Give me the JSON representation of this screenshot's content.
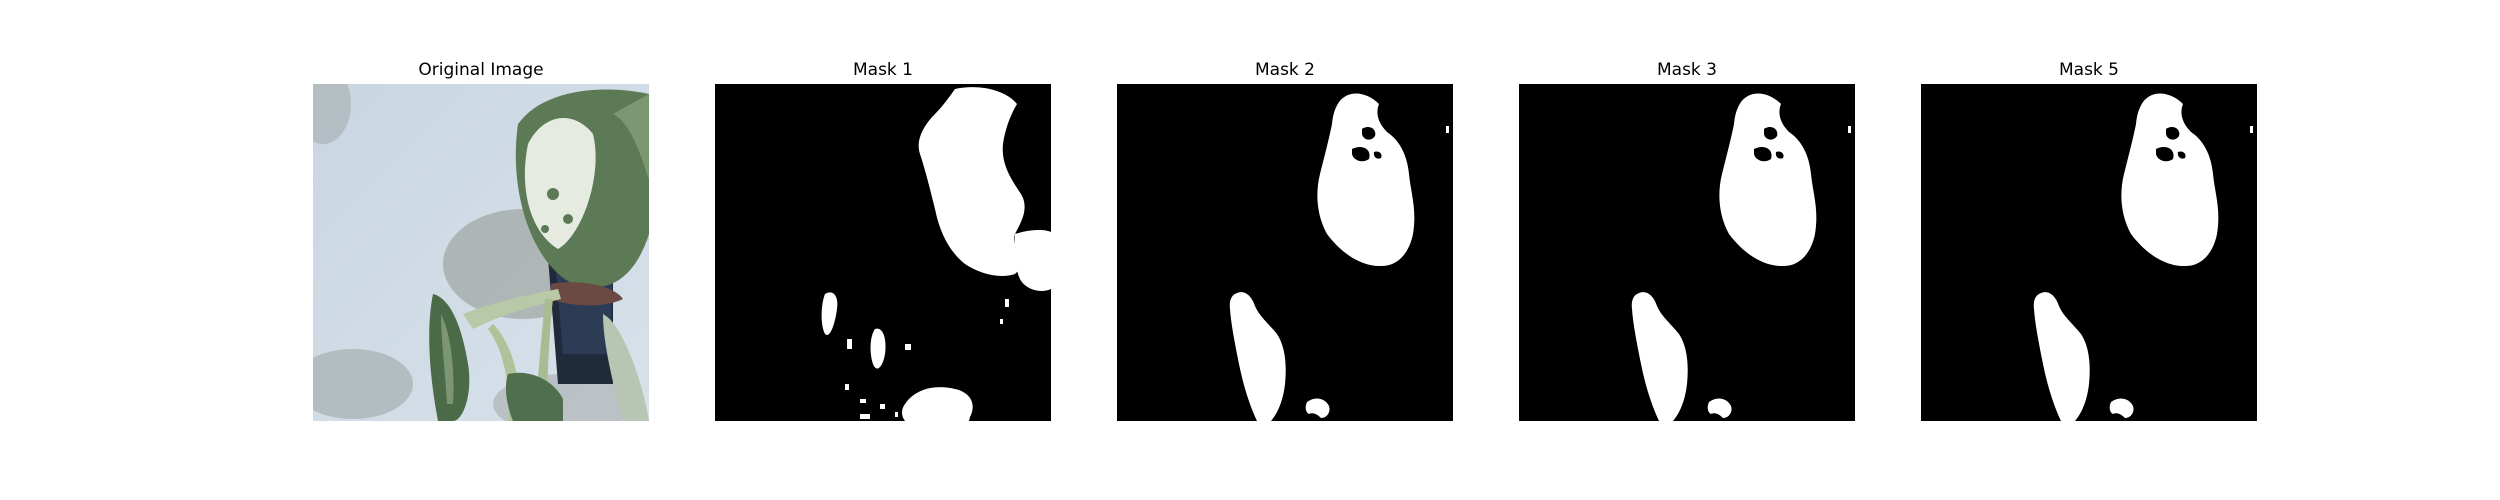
{
  "figure": {
    "panels": [
      {
        "title": "Original Image"
      },
      {
        "title": "Mask 1"
      },
      {
        "title": "Mask 2"
      },
      {
        "title": "Mask 3"
      },
      {
        "title": "Mask 5"
      }
    ]
  },
  "colors": {
    "background": "#ffffff",
    "mask_background": "#000000",
    "mask_foreground": "#ffffff",
    "wall": "#c8d4df",
    "leaf_dark": "#4f6b4c",
    "leaf_light": "#e8ece4",
    "stem": "#b7c7a6",
    "pot": "#1f2a3a"
  }
}
